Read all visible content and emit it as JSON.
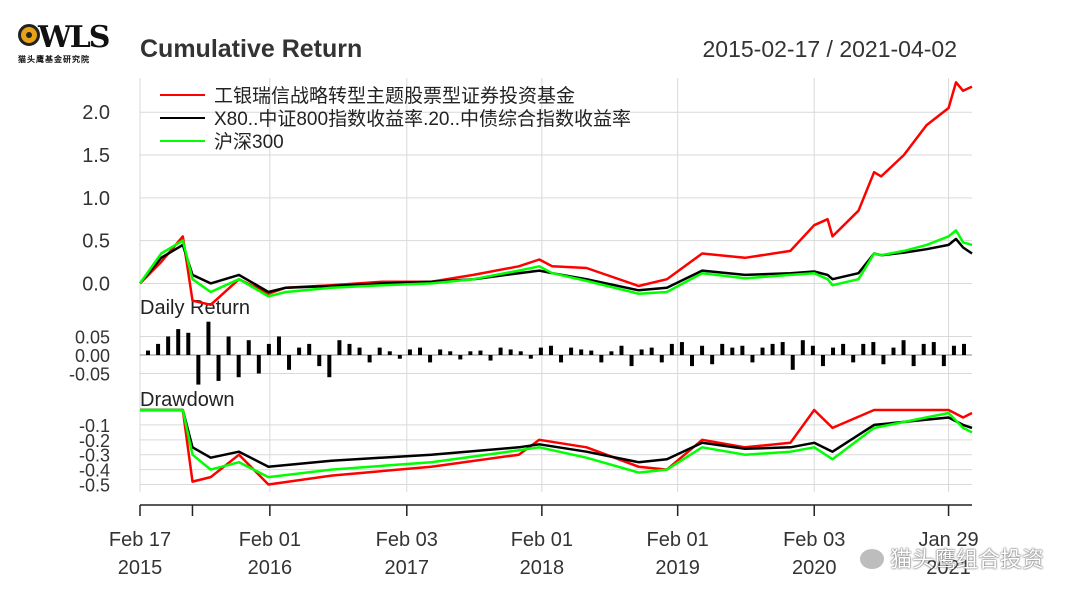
{
  "logo": {
    "word": "WLS",
    "subtitle": "猫头鹰基金研究院"
  },
  "header": {
    "title": "Cumulative Return",
    "date_range": "2015-02-17 / 2021-04-02"
  },
  "watermark": "猫头鹰组合投资",
  "colors": {
    "fund": "#ff0000",
    "benchmark": "#000000",
    "hs300": "#00ff00",
    "grid": "#d9d9d9"
  },
  "chart_data": {
    "type": "line",
    "title": "Cumulative Return",
    "x_ticks": [
      {
        "date": "2015-02-17",
        "line1": "Feb 17",
        "line2": "2015"
      },
      {
        "date": "2016-02-01",
        "line1": "Feb 01",
        "line2": "2016"
      },
      {
        "date": "2017-02-03",
        "line1": "Feb 03",
        "line2": "2017"
      },
      {
        "date": "2018-02-01",
        "line1": "Feb 01",
        "line2": "2018"
      },
      {
        "date": "2019-02-01",
        "line1": "Feb 01",
        "line2": "2019"
      },
      {
        "date": "2020-02-03",
        "line1": "Feb 03",
        "line2": "2020"
      },
      {
        "date": "2021-01-29",
        "line1": "Jan 29",
        "line2": "2021"
      }
    ],
    "panels": [
      {
        "name": "cumulative-return",
        "ylim": [
          -0.1,
          2.4
        ],
        "yticks": [
          0.0,
          0.5,
          1.0,
          1.5,
          2.0
        ],
        "ytick_labels": [
          "0.0",
          "0.5",
          "1.0",
          "1.5",
          "2.0"
        ],
        "legend_position": "top-left",
        "series": [
          {
            "name": "工银瑞信战略转型主题股票型证券投资基金",
            "color": "#ff0000",
            "x": [
              "2015-02-17",
              "2015-04-15",
              "2015-06-12",
              "2015-07-08",
              "2015-08-26",
              "2015-11-10",
              "2016-01-28",
              "2016-03-15",
              "2016-07-15",
              "2016-12-01",
              "2017-04-10",
              "2017-08-01",
              "2017-12-01",
              "2018-01-25",
              "2018-03-01",
              "2018-06-01",
              "2018-10-19",
              "2019-01-03",
              "2019-04-08",
              "2019-08-01",
              "2019-12-01",
              "2020-02-03",
              "2020-03-10",
              "2020-03-23",
              "2020-06-01",
              "2020-07-13",
              "2020-08-01",
              "2020-10-01",
              "2020-12-01",
              "2021-01-29",
              "2021-02-18",
              "2021-03-09",
              "2021-04-02"
            ],
            "y": [
              0.0,
              0.25,
              0.55,
              -0.2,
              -0.25,
              0.05,
              -0.12,
              -0.05,
              -0.02,
              0.02,
              0.02,
              0.1,
              0.2,
              0.28,
              0.2,
              0.18,
              -0.03,
              0.05,
              0.35,
              0.3,
              0.38,
              0.68,
              0.75,
              0.55,
              0.85,
              1.3,
              1.25,
              1.5,
              1.85,
              2.05,
              2.35,
              2.25,
              2.3
            ]
          },
          {
            "name": "X80..中证800指数收益率.20..中债综合指数收益率",
            "color": "#000000",
            "x": [
              "2015-02-17",
              "2015-04-15",
              "2015-06-12",
              "2015-07-08",
              "2015-08-26",
              "2015-11-10",
              "2016-01-28",
              "2016-03-15",
              "2016-07-15",
              "2016-12-01",
              "2017-04-10",
              "2017-08-01",
              "2017-12-01",
              "2018-01-25",
              "2018-03-01",
              "2018-06-01",
              "2018-10-19",
              "2019-01-03",
              "2019-04-08",
              "2019-08-01",
              "2019-12-01",
              "2020-02-03",
              "2020-03-10",
              "2020-03-23",
              "2020-06-01",
              "2020-07-13",
              "2020-08-01",
              "2020-10-01",
              "2020-12-01",
              "2021-01-29",
              "2021-02-18",
              "2021-03-09",
              "2021-04-02"
            ],
            "y": [
              0.0,
              0.3,
              0.45,
              0.1,
              0.0,
              0.1,
              -0.1,
              -0.05,
              -0.03,
              0.0,
              0.02,
              0.05,
              0.12,
              0.15,
              0.12,
              0.05,
              -0.08,
              -0.05,
              0.15,
              0.1,
              0.12,
              0.14,
              0.1,
              0.05,
              0.12,
              0.35,
              0.33,
              0.36,
              0.4,
              0.45,
              0.52,
              0.42,
              0.35
            ]
          },
          {
            "name": "沪深300",
            "color": "#00ff00",
            "x": [
              "2015-02-17",
              "2015-04-15",
              "2015-06-12",
              "2015-07-08",
              "2015-08-26",
              "2015-11-10",
              "2016-01-28",
              "2016-03-15",
              "2016-07-15",
              "2016-12-01",
              "2017-04-10",
              "2017-08-01",
              "2017-12-01",
              "2018-01-25",
              "2018-03-01",
              "2018-06-01",
              "2018-10-19",
              "2019-01-03",
              "2019-04-08",
              "2019-08-01",
              "2019-12-01",
              "2020-02-03",
              "2020-03-10",
              "2020-03-23",
              "2020-06-01",
              "2020-07-13",
              "2020-08-01",
              "2020-10-01",
              "2020-12-01",
              "2021-01-29",
              "2021-02-18",
              "2021-03-09",
              "2021-04-02"
            ],
            "y": [
              0.0,
              0.35,
              0.5,
              0.05,
              -0.1,
              0.05,
              -0.15,
              -0.1,
              -0.05,
              -0.02,
              0.0,
              0.05,
              0.15,
              0.2,
              0.12,
              0.03,
              -0.12,
              -0.1,
              0.12,
              0.06,
              0.1,
              0.12,
              0.05,
              -0.02,
              0.05,
              0.35,
              0.33,
              0.38,
              0.45,
              0.55,
              0.62,
              0.48,
              0.45
            ]
          }
        ]
      },
      {
        "name": "daily-return",
        "label": "Daily Return",
        "ylim": [
          -0.1,
          0.1
        ],
        "yticks": [
          0.05,
          0.0,
          -0.05
        ],
        "ytick_labels": [
          "0.05",
          "0.00",
          "-0.05"
        ],
        "series": [
          {
            "name": "工银瑞信战略转型主题股票型证券投资基金",
            "color": "#000000",
            "values": [
              0.012,
              0.03,
              0.05,
              0.07,
              0.06,
              -0.08,
              0.09,
              -0.07,
              0.05,
              -0.06,
              0.04,
              -0.05,
              0.03,
              0.05,
              -0.04,
              0.02,
              0.03,
              -0.03,
              -0.06,
              0.04,
              0.03,
              0.02,
              -0.02,
              0.02,
              0.01,
              -0.01,
              0.015,
              0.02,
              -0.02,
              0.015,
              0.01,
              -0.012,
              0.01,
              0.012,
              -0.015,
              0.02,
              0.015,
              0.01,
              -0.01,
              0.02,
              0.025,
              -0.02,
              0.02,
              0.015,
              0.012,
              -0.02,
              0.01,
              0.025,
              -0.03,
              0.015,
              0.02,
              -0.02,
              0.03,
              0.035,
              -0.03,
              0.025,
              -0.025,
              0.03,
              0.02,
              0.025,
              -0.02,
              0.02,
              0.03,
              0.035,
              -0.04,
              0.04,
              0.025,
              -0.03,
              0.02,
              0.03,
              -0.02,
              0.03,
              0.035,
              -0.025,
              0.02,
              0.04,
              -0.03,
              0.03,
              0.035,
              -0.03,
              0.025,
              0.03
            ]
          }
        ]
      },
      {
        "name": "drawdown",
        "label": "Drawdown",
        "ylim": [
          -0.55,
          0.0
        ],
        "yticks": [
          -0.1,
          -0.2,
          -0.3,
          -0.4,
          -0.5
        ],
        "ytick_labels": [
          "-0.1",
          "-0.2",
          "-0.3",
          "-0.4",
          "-0.5"
        ],
        "series": [
          {
            "name": "工银瑞信战略转型主题股票型证券投资基金",
            "color": "#ff0000",
            "x": [
              "2015-02-17",
              "2015-05-01",
              "2015-06-12",
              "2015-07-08",
              "2015-08-26",
              "2015-11-10",
              "2016-01-28",
              "2016-07-15",
              "2017-04-10",
              "2017-12-01",
              "2018-01-25",
              "2018-06-01",
              "2018-10-19",
              "2019-01-03",
              "2019-04-08",
              "2019-08-01",
              "2019-12-01",
              "2020-02-03",
              "2020-03-23",
              "2020-07-13",
              "2021-01-29",
              "2021-03-09",
              "2021-04-02"
            ],
            "y": [
              0.0,
              0.0,
              0.0,
              -0.48,
              -0.45,
              -0.3,
              -0.5,
              -0.44,
              -0.38,
              -0.3,
              -0.2,
              -0.25,
              -0.38,
              -0.4,
              -0.2,
              -0.25,
              -0.22,
              0.0,
              -0.12,
              0.0,
              0.0,
              -0.05,
              -0.02
            ]
          },
          {
            "name": "X80..中证800指数收益率.20..中债综合指数收益率",
            "color": "#000000",
            "x": [
              "2015-02-17",
              "2015-05-01",
              "2015-06-12",
              "2015-07-08",
              "2015-08-26",
              "2015-11-10",
              "2016-01-28",
              "2016-07-15",
              "2017-04-10",
              "2017-12-01",
              "2018-01-25",
              "2018-06-01",
              "2018-10-19",
              "2019-01-03",
              "2019-04-08",
              "2019-08-01",
              "2019-12-01",
              "2020-02-03",
              "2020-03-23",
              "2020-07-13",
              "2021-01-29",
              "2021-03-09",
              "2021-04-02"
            ],
            "y": [
              0.0,
              0.0,
              0.0,
              -0.25,
              -0.32,
              -0.28,
              -0.38,
              -0.34,
              -0.3,
              -0.25,
              -0.23,
              -0.28,
              -0.35,
              -0.33,
              -0.22,
              -0.26,
              -0.25,
              -0.22,
              -0.28,
              -0.1,
              -0.05,
              -0.1,
              -0.12
            ]
          },
          {
            "name": "沪深300",
            "color": "#00ff00",
            "x": [
              "2015-02-17",
              "2015-05-01",
              "2015-06-12",
              "2015-07-08",
              "2015-08-26",
              "2015-11-10",
              "2016-01-28",
              "2016-07-15",
              "2017-04-10",
              "2017-12-01",
              "2018-01-25",
              "2018-06-01",
              "2018-10-19",
              "2019-01-03",
              "2019-04-08",
              "2019-08-01",
              "2019-12-01",
              "2020-02-03",
              "2020-03-23",
              "2020-07-13",
              "2021-01-29",
              "2021-03-09",
              "2021-04-02"
            ],
            "y": [
              0.0,
              0.0,
              0.0,
              -0.3,
              -0.4,
              -0.35,
              -0.45,
              -0.4,
              -0.35,
              -0.27,
              -0.25,
              -0.32,
              -0.42,
              -0.4,
              -0.25,
              -0.3,
              -0.28,
              -0.25,
              -0.33,
              -0.12,
              -0.02,
              -0.12,
              -0.15
            ]
          }
        ]
      }
    ]
  }
}
